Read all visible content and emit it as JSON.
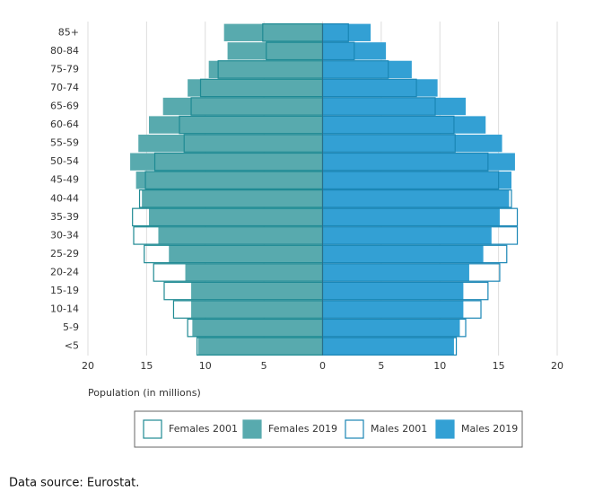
{
  "chart_data": {
    "type": "pyramid",
    "categories": [
      "85+",
      "80-84",
      "75-79",
      "70-74",
      "65-69",
      "60-64",
      "55-59",
      "50-54",
      "45-49",
      "40-44",
      "35-39",
      "30-34",
      "25-29",
      "20-24",
      "15-19",
      "10-14",
      "5-9",
      "<5"
    ],
    "series": [
      {
        "name": "Females 2001",
        "color": "#1f8a93",
        "style": "outline",
        "side": "left",
        "values": [
          5.1,
          4.8,
          8.9,
          10.4,
          11.2,
          12.2,
          11.8,
          14.3,
          15.1,
          15.6,
          16.2,
          16.1,
          15.2,
          14.4,
          13.5,
          12.7,
          11.5,
          10.7
        ]
      },
      {
        "name": "Females 2019",
        "color": "#58aaae",
        "style": "fill",
        "side": "left",
        "values": [
          8.4,
          8.1,
          9.7,
          11.5,
          13.6,
          14.8,
          15.7,
          16.4,
          15.9,
          15.4,
          14.8,
          14.0,
          13.1,
          11.7,
          11.2,
          11.2,
          11.1,
          10.6
        ]
      },
      {
        "name": "Males 2001",
        "color": "#1a86b5",
        "style": "outline",
        "side": "right",
        "values": [
          2.2,
          2.7,
          5.6,
          8.0,
          9.6,
          11.2,
          11.3,
          14.1,
          15.0,
          16.1,
          16.6,
          16.6,
          15.7,
          15.1,
          14.1,
          13.5,
          12.2,
          11.4
        ]
      },
      {
        "name": "Males 2019",
        "color": "#33a0d4",
        "style": "fill",
        "side": "right",
        "values": [
          4.1,
          5.4,
          7.6,
          9.8,
          12.2,
          13.9,
          15.3,
          16.4,
          16.1,
          15.9,
          15.1,
          14.4,
          13.7,
          12.5,
          12.0,
          12.0,
          11.7,
          11.2
        ]
      }
    ],
    "xlim": [
      -20,
      20
    ],
    "xticks": [
      {
        "value": -20,
        "label": "20"
      },
      {
        "value": -15,
        "label": "15"
      },
      {
        "value": -10,
        "label": "10"
      },
      {
        "value": -5,
        "label": "5"
      },
      0,
      5,
      10,
      15,
      20
    ],
    "xlabel": "Population (in millions)",
    "grid": true,
    "source": "Data source: Eurostat."
  }
}
